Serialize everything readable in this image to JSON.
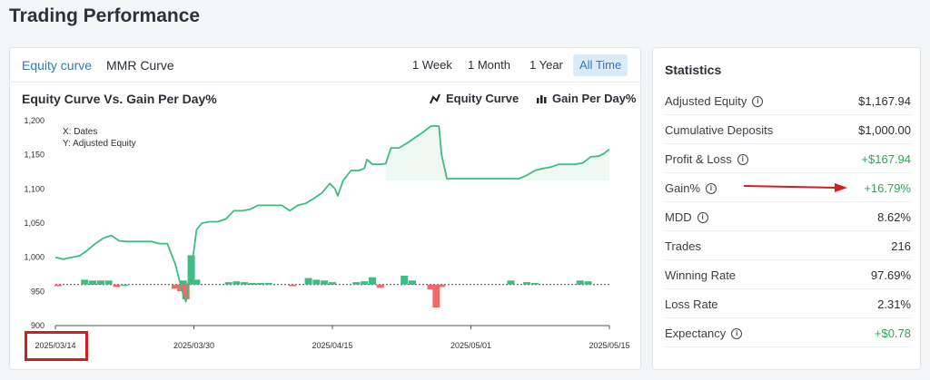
{
  "page_title": "Trading Performance",
  "tabs": [
    {
      "label": "Equity curve",
      "active": true
    },
    {
      "label": "MMR Curve",
      "active": false
    }
  ],
  "ranges": [
    {
      "label": "1 Week",
      "active": false
    },
    {
      "label": "1 Month",
      "active": false
    },
    {
      "label": "1 Year",
      "active": false
    },
    {
      "label": "All Time",
      "active": true
    }
  ],
  "chart_title": "Equity Curve Vs. Gain Per Day%",
  "legend": {
    "line_label": "Equity Curve",
    "line_icon": "line-chart-icon",
    "bar_label": "Gain Per Day%",
    "bar_icon": "bar-chart-icon"
  },
  "axis_notes": {
    "x": "X: Dates",
    "y": "Y: Adjusted Equity"
  },
  "colors": {
    "accent": "#2f78c4",
    "line": "#3dbd81",
    "bar_pos": "#3dbd81",
    "bar_neg": "#ef6b6b",
    "positive_text": "#2ea65a",
    "highlight": "#d61c1c"
  },
  "chart_data": {
    "type": "line",
    "y_ticks": [
      900,
      950,
      "1,000",
      "1,050",
      "1,100",
      "1,150",
      "1,200"
    ],
    "ylim": [
      900,
      1200
    ],
    "x_ticks": [
      "2025/03/14",
      "2025/03/30",
      "2025/04/15",
      "2025/05/01",
      "2025/05/15"
    ],
    "series": [
      {
        "name": "Equity Curve",
        "values": [
          [
            0,
            1000
          ],
          [
            3,
            997
          ],
          [
            6,
            1000
          ],
          [
            9,
            1002
          ],
          [
            12,
            1010
          ],
          [
            15,
            1020
          ],
          [
            18,
            1028
          ],
          [
            21,
            1032
          ],
          [
            24,
            1024
          ],
          [
            27,
            1023
          ],
          [
            30,
            1023
          ],
          [
            33,
            1023
          ],
          [
            36,
            1023
          ],
          [
            39,
            1020
          ],
          [
            42,
            1020
          ],
          [
            45,
            990
          ],
          [
            47,
            960
          ],
          [
            48,
            945
          ],
          [
            49,
            935
          ],
          [
            50,
            960
          ],
          [
            52,
            1010
          ],
          [
            53,
            1040
          ],
          [
            55,
            1050
          ],
          [
            58,
            1052
          ],
          [
            61,
            1052
          ],
          [
            64,
            1056
          ],
          [
            67,
            1068
          ],
          [
            70,
            1068
          ],
          [
            73,
            1070
          ],
          [
            76,
            1076
          ],
          [
            79,
            1076
          ],
          [
            82,
            1076
          ],
          [
            85,
            1076
          ],
          [
            88,
            1068
          ],
          [
            91,
            1076
          ],
          [
            94,
            1079
          ],
          [
            97,
            1086
          ],
          [
            100,
            1094
          ],
          [
            103,
            1108
          ],
          [
            105,
            1100
          ],
          [
            106,
            1090
          ],
          [
            108,
            1112
          ],
          [
            111,
            1127
          ],
          [
            114,
            1127
          ],
          [
            116,
            1130
          ],
          [
            117,
            1143
          ],
          [
            119,
            1136
          ],
          [
            122,
            1136
          ],
          [
            124,
            1137
          ],
          [
            126,
            1160
          ],
          [
            129,
            1160
          ],
          [
            132,
            1167
          ],
          [
            135,
            1175
          ],
          [
            138,
            1183
          ],
          [
            141,
            1192
          ],
          [
            144,
            1192
          ],
          [
            145,
            1150
          ],
          [
            147,
            1115
          ],
          [
            150,
            1115
          ],
          [
            156,
            1115
          ],
          [
            162,
            1115
          ],
          [
            168,
            1115
          ],
          [
            174,
            1115
          ],
          [
            177,
            1120
          ],
          [
            180,
            1127
          ],
          [
            183,
            1130
          ],
          [
            186,
            1132
          ],
          [
            189,
            1136
          ],
          [
            192,
            1136
          ],
          [
            195,
            1136
          ],
          [
            198,
            1138
          ],
          [
            201,
            1147
          ],
          [
            204,
            1148
          ],
          [
            206,
            1152
          ],
          [
            208,
            1158
          ]
        ]
      },
      {
        "name": "Gain Per Day%",
        "values": [
          [
            1,
            -2
          ],
          [
            11,
            6
          ],
          [
            14,
            5
          ],
          [
            17,
            5
          ],
          [
            20,
            5
          ],
          [
            23,
            -3
          ],
          [
            26,
            0
          ],
          [
            45,
            -5
          ],
          [
            47,
            -8
          ],
          [
            48,
            5
          ],
          [
            49,
            -18
          ],
          [
            51,
            36
          ],
          [
            53,
            6
          ],
          [
            65,
            3
          ],
          [
            68,
            4
          ],
          [
            71,
            3
          ],
          [
            74,
            2
          ],
          [
            77,
            2
          ],
          [
            80,
            2
          ],
          [
            89,
            -2
          ],
          [
            95,
            8
          ],
          [
            98,
            6
          ],
          [
            101,
            5
          ],
          [
            104,
            3
          ],
          [
            113,
            3
          ],
          [
            116,
            4
          ],
          [
            119,
            9
          ],
          [
            122,
            -4
          ],
          [
            131,
            11
          ],
          [
            134,
            5
          ],
          [
            141,
            -6
          ],
          [
            143,
            -28
          ],
          [
            145,
            -3
          ],
          [
            171,
            5
          ],
          [
            177,
            3
          ],
          [
            180,
            2
          ],
          [
            197,
            5
          ],
          [
            200,
            4
          ]
        ]
      }
    ],
    "baseline": 960
  },
  "highlight_box_label": "2025/03/14",
  "statistics": {
    "title": "Statistics",
    "rows": [
      {
        "label": "Adjusted Equity",
        "value": "$1,167.94",
        "info": true,
        "positive": false
      },
      {
        "label": "Cumulative Deposits",
        "value": "$1,000.00",
        "info": false,
        "positive": false
      },
      {
        "label": "Profit & Loss",
        "value": "+$167.94",
        "info": true,
        "positive": true
      },
      {
        "label": "Gain%",
        "value": "+16.79%",
        "info": true,
        "positive": true
      },
      {
        "label": "MDD",
        "value": "8.62%",
        "info": true,
        "positive": false
      },
      {
        "label": "Trades",
        "value": "216",
        "info": false,
        "positive": false
      },
      {
        "label": "Winning Rate",
        "value": "97.69%",
        "info": false,
        "positive": false
      },
      {
        "label": "Loss Rate",
        "value": "2.31%",
        "info": false,
        "positive": false
      },
      {
        "label": "Expectancy",
        "value": "+$0.78",
        "info": true,
        "positive": true
      }
    ]
  }
}
